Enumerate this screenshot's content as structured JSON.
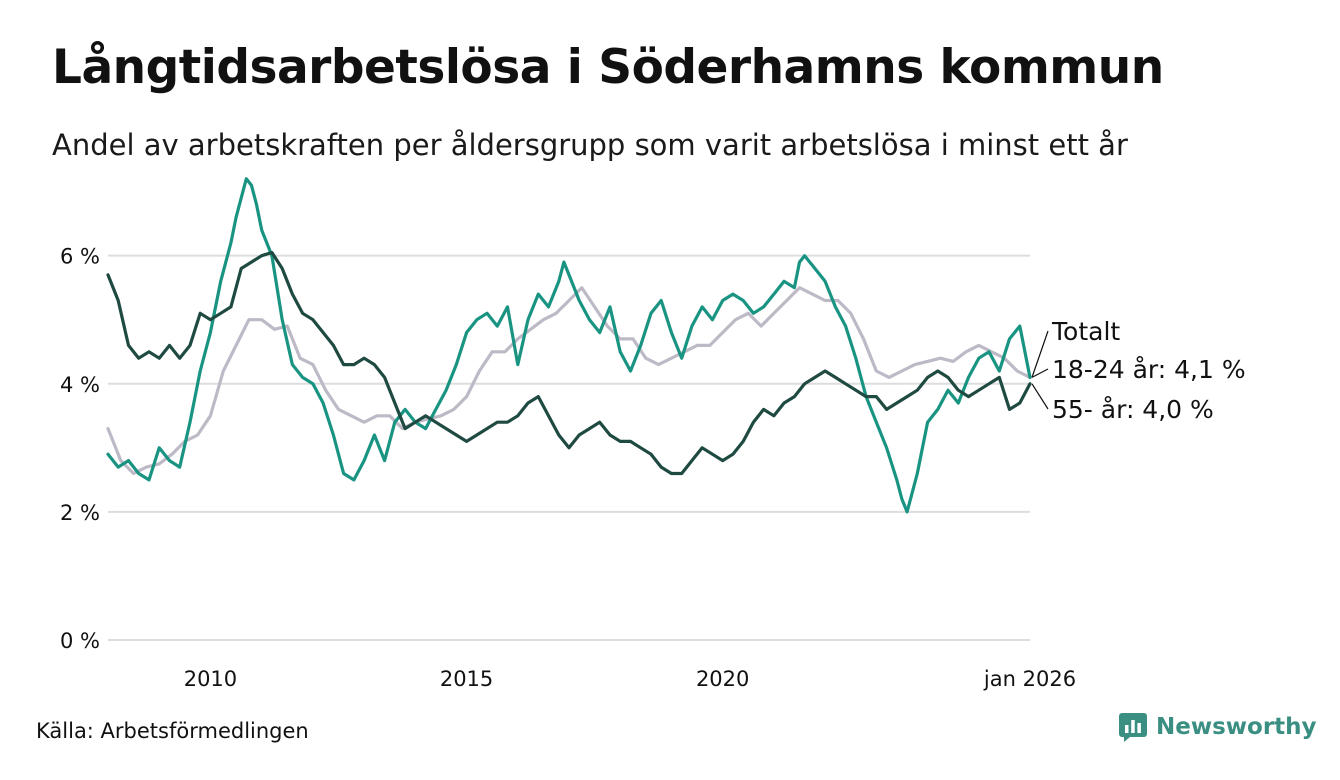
{
  "header": {
    "title": "Långtidsarbetslösa i Söderhamns kommun",
    "subtitle": "Andel av arbetskraften per åldersgrupp som varit arbetslösa i minst ett år"
  },
  "footer": {
    "source": "Källa: Arbetsförmedlingen",
    "brand": "Newsworthy"
  },
  "colors": {
    "total": "#bdb9c6",
    "age18_24": "#1a9482",
    "age55": "#1f4a42",
    "grid": "#dddddd",
    "brand": "#3a8f82"
  },
  "chart_data": {
    "type": "line",
    "title": "Långtidsarbetslösa i Söderhamns kommun",
    "xlabel": "",
    "ylabel": "",
    "xlim": [
      2008.0,
      2026.0
    ],
    "ylim": [
      0,
      7.4
    ],
    "x_ticks": [
      {
        "value": 2010,
        "label": "2010"
      },
      {
        "value": 2015,
        "label": "2015"
      },
      {
        "value": 2020,
        "label": "2020"
      },
      {
        "value": 2026,
        "label": "jan 2026"
      }
    ],
    "y_ticks": [
      {
        "value": 0,
        "label": "0 %"
      },
      {
        "value": 2,
        "label": "2 %"
      },
      {
        "value": 4,
        "label": "4 %"
      },
      {
        "value": 6,
        "label": "6 %"
      }
    ],
    "series": [
      {
        "key": "total",
        "name": "Totalt",
        "label": "Totalt",
        "x": [
          2008.0,
          2008.25,
          2008.5,
          2008.75,
          2009.0,
          2009.25,
          2009.5,
          2009.75,
          2010.0,
          2010.25,
          2010.5,
          2010.75,
          2011.0,
          2011.25,
          2011.5,
          2011.75,
          2012.0,
          2012.25,
          2012.5,
          2012.75,
          2013.0,
          2013.25,
          2013.5,
          2013.75,
          2014.0,
          2014.25,
          2014.5,
          2014.75,
          2015.0,
          2015.25,
          2015.5,
          2015.75,
          2016.0,
          2016.25,
          2016.5,
          2016.75,
          2017.0,
          2017.25,
          2017.5,
          2017.75,
          2018.0,
          2018.25,
          2018.5,
          2018.75,
          2019.0,
          2019.25,
          2019.5,
          2019.75,
          2020.0,
          2020.25,
          2020.5,
          2020.75,
          2021.0,
          2021.25,
          2021.5,
          2021.75,
          2022.0,
          2022.25,
          2022.5,
          2022.75,
          2023.0,
          2023.25,
          2023.5,
          2023.75,
          2024.0,
          2024.25,
          2024.5,
          2024.75,
          2025.0,
          2025.25,
          2025.5,
          2025.75,
          2026.0
        ],
        "values": [
          3.3,
          2.8,
          2.6,
          2.7,
          2.75,
          2.9,
          3.1,
          3.2,
          3.5,
          4.2,
          4.6,
          5.0,
          5.0,
          4.85,
          4.9,
          4.4,
          4.3,
          3.9,
          3.6,
          3.5,
          3.4,
          3.5,
          3.5,
          3.3,
          3.4,
          3.45,
          3.5,
          3.6,
          3.8,
          4.2,
          4.5,
          4.5,
          4.7,
          4.85,
          5.0,
          5.1,
          5.3,
          5.5,
          5.2,
          4.9,
          4.7,
          4.7,
          4.4,
          4.3,
          4.4,
          4.5,
          4.6,
          4.6,
          4.8,
          5.0,
          5.1,
          4.9,
          5.1,
          5.3,
          5.5,
          5.4,
          5.3,
          5.3,
          5.1,
          4.7,
          4.2,
          4.1,
          4.2,
          4.3,
          4.35,
          4.4,
          4.35,
          4.5,
          4.6,
          4.5,
          4.4,
          4.2,
          4.1
        ]
      },
      {
        "key": "age18_24",
        "name": "18-24 år",
        "label": "18-24 år: 4,1 %",
        "x": [
          2008.0,
          2008.2,
          2008.4,
          2008.6,
          2008.8,
          2009.0,
          2009.2,
          2009.4,
          2009.6,
          2009.8,
          2010.0,
          2010.2,
          2010.4,
          2010.5,
          2010.6,
          2010.7,
          2010.8,
          2010.9,
          2011.0,
          2011.2,
          2011.4,
          2011.6,
          2011.8,
          2012.0,
          2012.2,
          2012.4,
          2012.6,
          2012.8,
          2013.0,
          2013.2,
          2013.4,
          2013.6,
          2013.8,
          2014.0,
          2014.2,
          2014.4,
          2014.6,
          2014.8,
          2015.0,
          2015.2,
          2015.4,
          2015.6,
          2015.8,
          2016.0,
          2016.2,
          2016.4,
          2016.6,
          2016.8,
          2016.9,
          2017.0,
          2017.2,
          2017.4,
          2017.6,
          2017.8,
          2018.0,
          2018.2,
          2018.4,
          2018.6,
          2018.8,
          2019.0,
          2019.2,
          2019.4,
          2019.6,
          2019.8,
          2020.0,
          2020.2,
          2020.4,
          2020.6,
          2020.8,
          2021.0,
          2021.2,
          2021.4,
          2021.5,
          2021.6,
          2021.8,
          2022.0,
          2022.2,
          2022.4,
          2022.6,
          2022.8,
          2023.0,
          2023.2,
          2023.4,
          2023.5,
          2023.6,
          2023.8,
          2024.0,
          2024.2,
          2024.4,
          2024.6,
          2024.8,
          2025.0,
          2025.2,
          2025.4,
          2025.6,
          2025.8,
          2026.0
        ],
        "values": [
          2.9,
          2.7,
          2.8,
          2.6,
          2.5,
          3.0,
          2.8,
          2.7,
          3.4,
          4.2,
          4.8,
          5.6,
          6.2,
          6.6,
          6.9,
          7.2,
          7.1,
          6.8,
          6.4,
          6.0,
          5.0,
          4.3,
          4.1,
          4.0,
          3.7,
          3.2,
          2.6,
          2.5,
          2.8,
          3.2,
          2.8,
          3.4,
          3.6,
          3.4,
          3.3,
          3.6,
          3.9,
          4.3,
          4.8,
          5.0,
          5.1,
          4.9,
          5.2,
          4.3,
          5.0,
          5.4,
          5.2,
          5.6,
          5.9,
          5.7,
          5.3,
          5.0,
          4.8,
          5.2,
          4.5,
          4.2,
          4.6,
          5.1,
          5.3,
          4.8,
          4.4,
          4.9,
          5.2,
          5.0,
          5.3,
          5.4,
          5.3,
          5.1,
          5.2,
          5.4,
          5.6,
          5.5,
          5.9,
          6.0,
          5.8,
          5.6,
          5.2,
          4.9,
          4.4,
          3.8,
          3.4,
          3.0,
          2.5,
          2.2,
          2.0,
          2.6,
          3.4,
          3.6,
          3.9,
          3.7,
          4.1,
          4.4,
          4.5,
          4.2,
          4.7,
          4.9,
          4.1
        ]
      },
      {
        "key": "age55",
        "name": "55- år",
        "label": "55- år: 4,0 %",
        "x": [
          2008.0,
          2008.2,
          2008.4,
          2008.6,
          2008.8,
          2009.0,
          2009.2,
          2009.4,
          2009.6,
          2009.8,
          2010.0,
          2010.2,
          2010.4,
          2010.6,
          2010.8,
          2011.0,
          2011.2,
          2011.4,
          2011.6,
          2011.8,
          2012.0,
          2012.2,
          2012.4,
          2012.6,
          2012.8,
          2013.0,
          2013.2,
          2013.4,
          2013.6,
          2013.8,
          2014.0,
          2014.2,
          2014.4,
          2014.6,
          2014.8,
          2015.0,
          2015.2,
          2015.4,
          2015.6,
          2015.8,
          2016.0,
          2016.2,
          2016.4,
          2016.6,
          2016.8,
          2017.0,
          2017.2,
          2017.4,
          2017.6,
          2017.8,
          2018.0,
          2018.2,
          2018.4,
          2018.6,
          2018.8,
          2019.0,
          2019.2,
          2019.4,
          2019.6,
          2019.8,
          2020.0,
          2020.2,
          2020.4,
          2020.6,
          2020.8,
          2021.0,
          2021.2,
          2021.4,
          2021.6,
          2021.8,
          2022.0,
          2022.2,
          2022.4,
          2022.6,
          2022.8,
          2023.0,
          2023.2,
          2023.4,
          2023.6,
          2023.8,
          2024.0,
          2024.2,
          2024.4,
          2024.6,
          2024.8,
          2025.0,
          2025.2,
          2025.4,
          2025.6,
          2025.8,
          2026.0
        ],
        "values": [
          5.7,
          5.3,
          4.6,
          4.4,
          4.5,
          4.4,
          4.6,
          4.4,
          4.6,
          5.1,
          5.0,
          5.1,
          5.2,
          5.8,
          5.9,
          6.0,
          6.05,
          5.8,
          5.4,
          5.1,
          5.0,
          4.8,
          4.6,
          4.3,
          4.3,
          4.4,
          4.3,
          4.1,
          3.7,
          3.3,
          3.4,
          3.5,
          3.4,
          3.3,
          3.2,
          3.1,
          3.2,
          3.3,
          3.4,
          3.4,
          3.5,
          3.7,
          3.8,
          3.5,
          3.2,
          3.0,
          3.2,
          3.3,
          3.4,
          3.2,
          3.1,
          3.1,
          3.0,
          2.9,
          2.7,
          2.6,
          2.6,
          2.8,
          3.0,
          2.9,
          2.8,
          2.9,
          3.1,
          3.4,
          3.6,
          3.5,
          3.7,
          3.8,
          4.0,
          4.1,
          4.2,
          4.1,
          4.0,
          3.9,
          3.8,
          3.8,
          3.6,
          3.7,
          3.8,
          3.9,
          4.1,
          4.2,
          4.1,
          3.9,
          3.8,
          3.9,
          4.0,
          4.1,
          3.6,
          3.7,
          4.0
        ]
      }
    ],
    "end_labels": [
      "Totalt",
      "18-24 år: 4,1 %",
      "55- år: 4,0 %"
    ]
  }
}
